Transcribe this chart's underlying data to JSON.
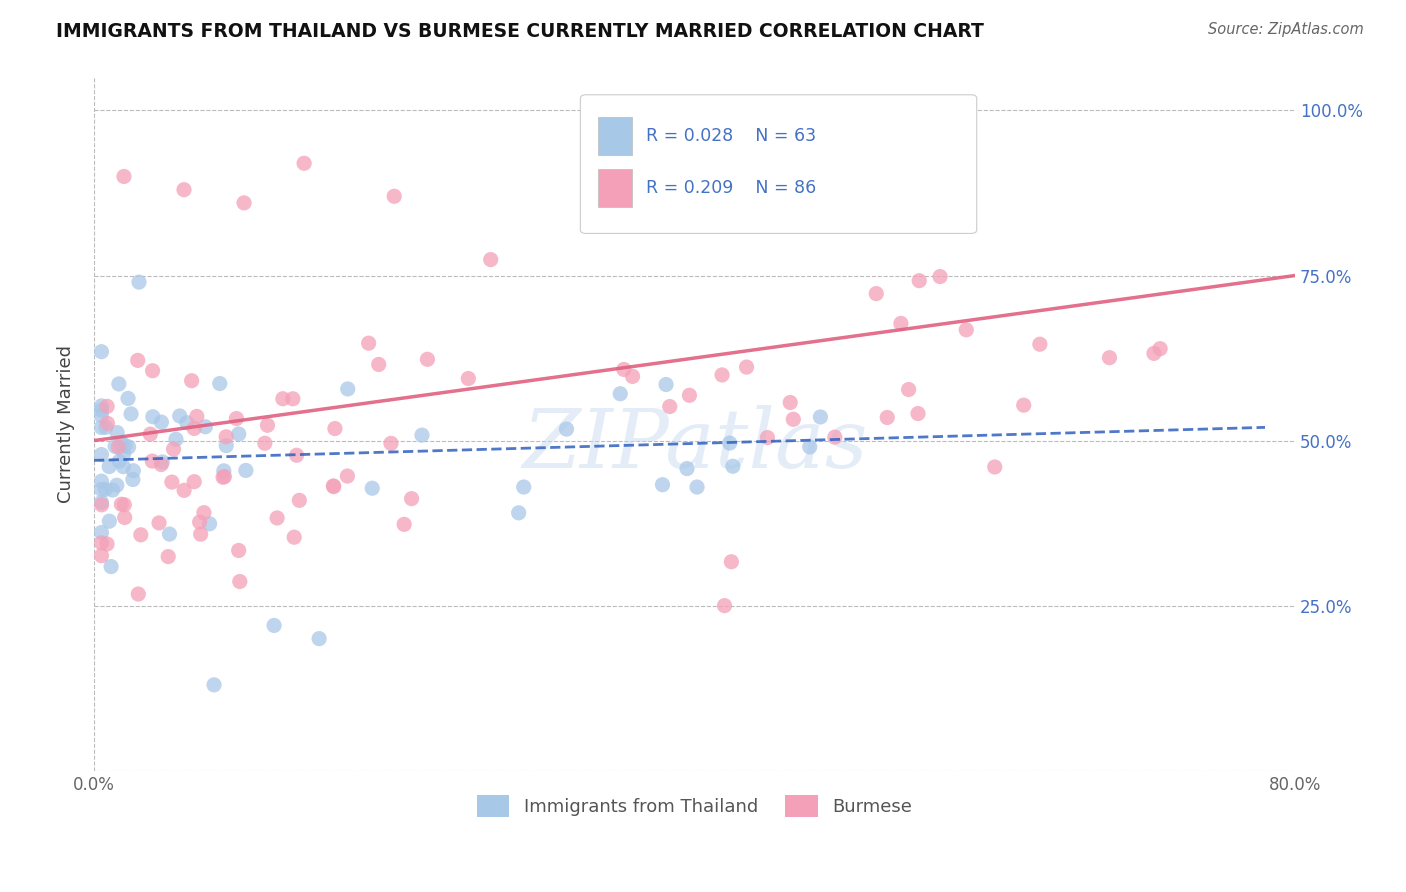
{
  "title": "IMMIGRANTS FROM THAILAND VS BURMESE CURRENTLY MARRIED CORRELATION CHART",
  "source": "Source: ZipAtlas.com",
  "ylabel": "Currently Married",
  "xlim": [
    0.0,
    0.8
  ],
  "ylim": [
    0.0,
    1.05
  ],
  "yticks": [
    0.0,
    0.25,
    0.5,
    0.75,
    1.0
  ],
  "ytick_labels": [
    "",
    "25.0%",
    "50.0%",
    "75.0%",
    "100.0%"
  ],
  "xticks": [
    0.0,
    0.8
  ],
  "xtick_labels": [
    "0.0%",
    "80.0%"
  ],
  "color_thailand": "#a8c8e8",
  "color_burmese": "#f4a0b8",
  "line_color_thailand": "#3060c0",
  "line_color_burmese": "#e06080",
  "watermark": "ZIPatlas",
  "legend_label1": "Immigrants from Thailand",
  "legend_label2": "Burmese",
  "legend_r1": "R = 0.028",
  "legend_n1": "N = 63",
  "legend_r2": "R = 0.209",
  "legend_n2": "N = 86",
  "th_line_x0": 0.0,
  "th_line_x1": 0.78,
  "th_line_y0": 0.47,
  "th_line_y1": 0.52,
  "bm_line_x0": 0.0,
  "bm_line_x1": 0.8,
  "bm_line_y0": 0.5,
  "bm_line_y1": 0.75
}
